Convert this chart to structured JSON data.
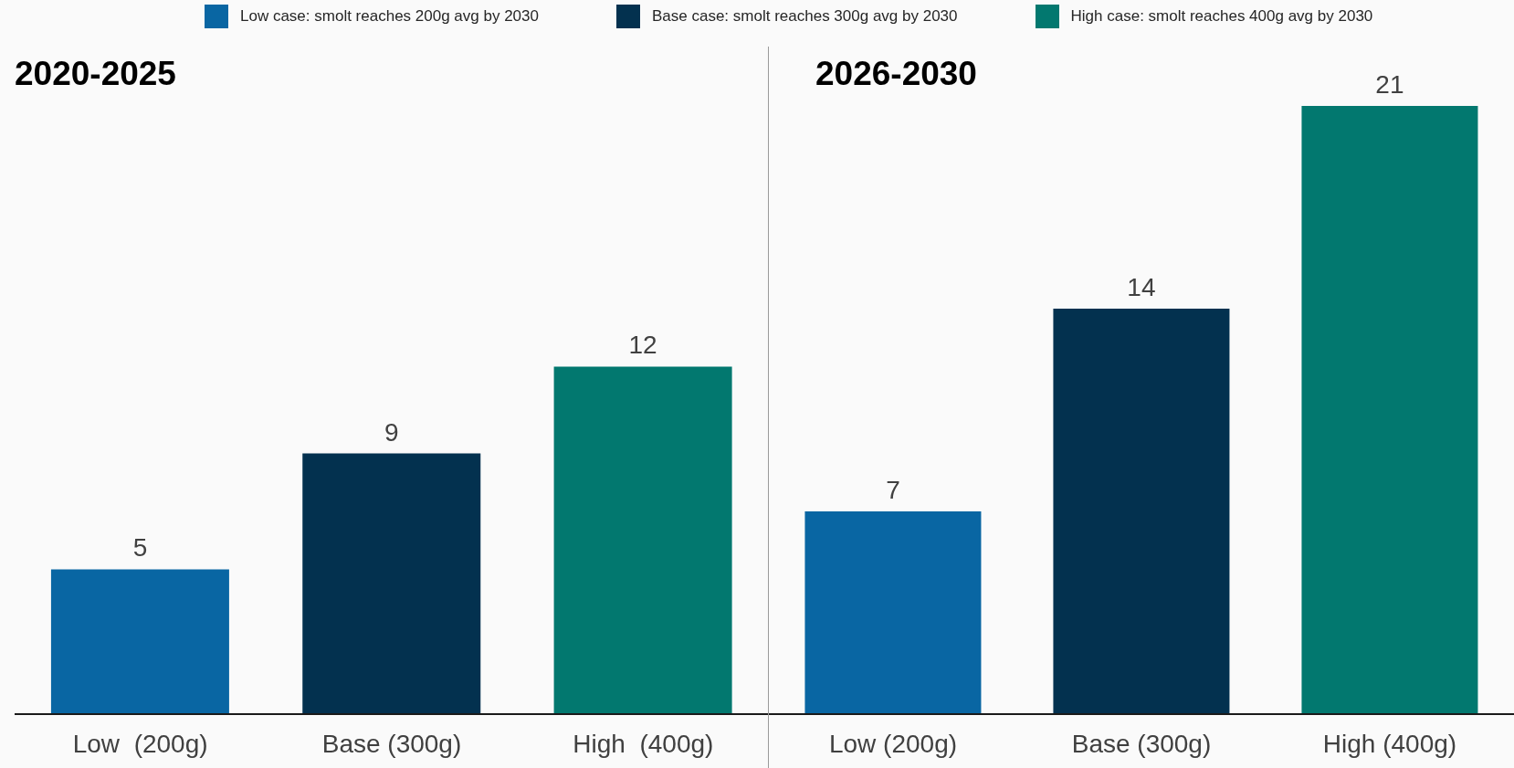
{
  "chart_data": [
    {
      "type": "bar",
      "title": "2020-2025",
      "categories": [
        "Low  (200g)",
        "Base (300g)",
        "High  (400g)"
      ],
      "series": [
        {
          "name": "Low case: smolt reaches 200g avg by 2030",
          "color": "#0966a3",
          "values": [
            5,
            null,
            null
          ]
        },
        {
          "name": "Base case: smolt reaches 300g avg by 2030",
          "color": "#03314f",
          "values": [
            null,
            9,
            null
          ]
        },
        {
          "name": "High case: smolt reaches 400g avg by 2030",
          "color": "#02786f",
          "values": [
            null,
            null,
            12
          ]
        }
      ],
      "stacked": true,
      "data_labels": true,
      "tick_labels": "x",
      "legend": "top"
    },
    {
      "type": "bar",
      "title": "2026-2030",
      "categories": [
        "Low (200g)",
        "Base (300g)",
        "High (400g)"
      ],
      "series": [
        {
          "color": "#0966a3",
          "values": [
            7,
            null,
            null
          ]
        },
        {
          "color": "#03314f",
          "values": [
            null,
            14,
            null
          ]
        },
        {
          "color": "#02786f",
          "values": [
            null,
            null,
            21
          ]
        }
      ],
      "stacked": true,
      "data_labels": true,
      "tick_labels": "x"
    }
  ]
}
